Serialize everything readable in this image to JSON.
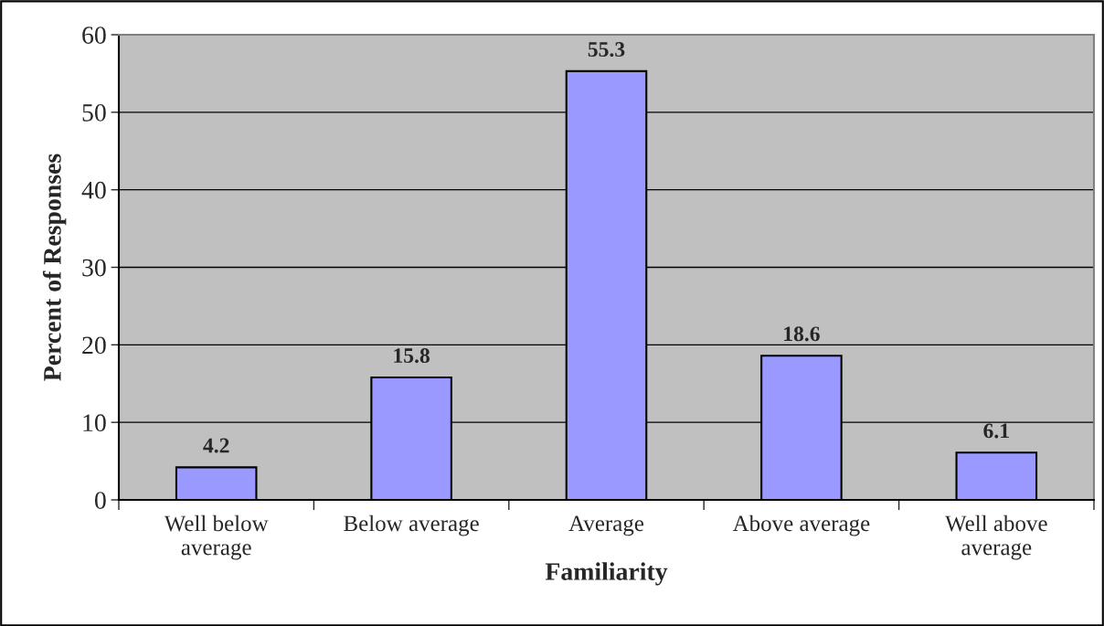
{
  "chart_data": {
    "type": "bar",
    "xlabel": "Familiarity",
    "ylabel": "Percent of Responses",
    "categories": [
      "Well below\naverage",
      "Below average",
      "Average",
      "Above average",
      "Well above\naverage"
    ],
    "values": [
      4.2,
      15.8,
      55.3,
      18.6,
      6.1
    ],
    "color": "#9999ff",
    "ylim": [
      0,
      60
    ],
    "yticks": [
      0,
      10,
      20,
      30,
      40,
      50,
      60
    ],
    "grid": "y",
    "data_labels": true,
    "legend": false
  }
}
